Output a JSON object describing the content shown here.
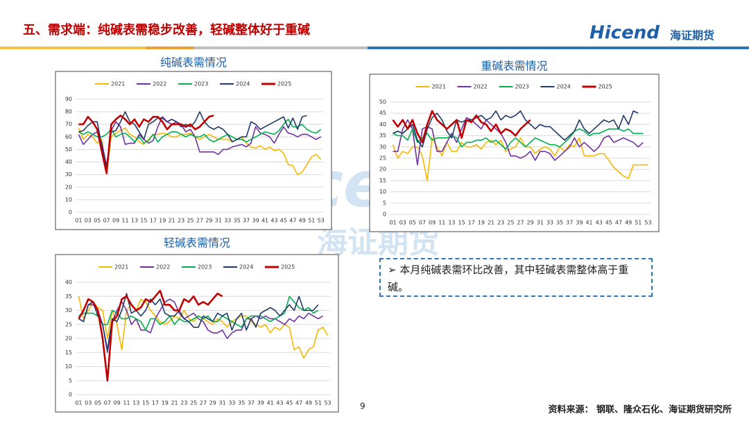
{
  "header": {
    "title": "五、需求端：纯碱表需稳步改善，轻碱整体好于重碱",
    "logo": "Hicend",
    "logo_cn": "海证期货"
  },
  "watermark": {
    "text": "Hicend",
    "text_cn": "海证期货"
  },
  "note": "本月纯碱表需环比改善，其中轻碱表需整体高于重碱。",
  "page": "9",
  "source": "资料来源：  钢联、隆众石化、海证期货研究所",
  "chart_data": [
    {
      "type": "line",
      "title": "纯碱表需情况",
      "categories": [
        "01",
        null,
        "03",
        null,
        "05",
        null,
        "07",
        null,
        "09",
        null,
        "11",
        null,
        "13",
        null,
        "15",
        null,
        "17",
        null,
        "19",
        null,
        "21",
        null,
        "23",
        null,
        "25",
        null,
        "27",
        null,
        "29",
        null,
        "31",
        null,
        "33",
        null,
        "35",
        null,
        "37",
        null,
        "39",
        null,
        "41",
        null,
        "43",
        null,
        "45",
        null,
        "47",
        null,
        "49",
        null,
        "51",
        null,
        "53"
      ],
      "ylim": [
        0,
        90
      ],
      "yticks": [
        0,
        10,
        20,
        30,
        40,
        50,
        60,
        70,
        80,
        90
      ],
      "legend": "top",
      "series": [
        {
          "name": "2021",
          "color": "#f5b800",
          "values": [
            67,
            58,
            62,
            60,
            55,
            58,
            31,
            60,
            63,
            65,
            67,
            62,
            60,
            56,
            54,
            58,
            62,
            62,
            63,
            62,
            60,
            60,
            62,
            62,
            63,
            60,
            58,
            60,
            62,
            60,
            58,
            58,
            58,
            56,
            58,
            60,
            55,
            52,
            51,
            53,
            50,
            52,
            49,
            50,
            47,
            38,
            37,
            30,
            32,
            38,
            44,
            46,
            42
          ]
        },
        {
          "name": "2022",
          "color": "#7030a0",
          "values": [
            62,
            54,
            58,
            62,
            64,
            55,
            37,
            65,
            72,
            68,
            54,
            55,
            55,
            62,
            58,
            55,
            57,
            68,
            76,
            72,
            70,
            72,
            70,
            64,
            66,
            60,
            48,
            48,
            48,
            48,
            46,
            50,
            50,
            52,
            53,
            54,
            52,
            55,
            68,
            63,
            62,
            60,
            55,
            62,
            68,
            63,
            62,
            60,
            62,
            62,
            60,
            58,
            60
          ]
        },
        {
          "name": "2023",
          "color": "#00b050",
          "values": [
            64,
            62,
            64,
            62,
            60,
            60,
            62,
            66,
            60,
            62,
            63,
            60,
            56,
            60,
            55,
            57,
            62,
            56,
            60,
            62,
            64,
            64,
            62,
            60,
            62,
            60,
            60,
            62,
            58,
            56,
            58,
            60,
            62,
            60,
            58,
            58,
            56,
            58,
            60,
            62,
            64,
            63,
            62,
            65,
            70,
            74,
            68,
            68,
            70,
            66,
            64,
            63,
            66
          ]
        },
        {
          "name": "2024",
          "color": "#1f3864",
          "values": [
            64,
            65,
            69,
            72,
            72,
            52,
            36,
            64,
            65,
            72,
            80,
            72,
            70,
            64,
            58,
            70,
            72,
            75,
            75,
            72,
            74,
            72,
            68,
            70,
            68,
            72,
            80,
            72,
            68,
            66,
            68,
            66,
            62,
            56,
            58,
            60,
            60,
            72,
            70,
            66,
            68,
            70,
            72,
            74,
            76,
            67,
            75,
            66,
            76,
            77,
            null,
            null,
            null
          ]
        },
        {
          "name": "2025",
          "color": "#c00000",
          "values": [
            70,
            70,
            76,
            72,
            66,
            48,
            31,
            70,
            74,
            77,
            74,
            70,
            74,
            68,
            74,
            72,
            76,
            76,
            72,
            66,
            70,
            70,
            70,
            68,
            70,
            66,
            68,
            72,
            76,
            77,
            null,
            null,
            null,
            null,
            null,
            null,
            null,
            null,
            null,
            null,
            null,
            null,
            null,
            null,
            null,
            null,
            null,
            null,
            null,
            null,
            null,
            null,
            null
          ]
        }
      ]
    },
    {
      "type": "line",
      "title": "重碱表需情况",
      "categories": [
        "01",
        null,
        "03",
        null,
        "05",
        null,
        "07",
        null,
        "09",
        null,
        "11",
        null,
        "13",
        null,
        "15",
        null,
        "17",
        null,
        "19",
        null,
        "21",
        null,
        "23",
        null,
        "25",
        null,
        "27",
        null,
        "29",
        null,
        "31",
        null,
        "33",
        null,
        "35",
        null,
        "37",
        null,
        "39",
        null,
        "41",
        null,
        "43",
        null,
        "45",
        null,
        "47",
        null,
        "49",
        null,
        "51",
        null,
        "53"
      ],
      "ylim": [
        0,
        50
      ],
      "yticks": [
        0,
        5,
        10,
        15,
        20,
        25,
        30,
        35,
        40,
        45,
        50
      ],
      "legend": "top",
      "series": [
        {
          "name": "2021",
          "color": "#f5b800",
          "values": [
            31,
            25,
            28,
            27,
            30,
            30,
            26,
            15,
            34,
            30,
            26,
            32,
            28,
            28,
            32,
            30,
            30,
            31,
            29,
            32,
            33,
            31,
            33,
            28,
            29,
            30,
            34,
            30,
            30,
            27,
            29,
            30,
            29,
            26,
            30,
            28,
            31,
            30,
            34,
            26,
            26,
            26,
            27,
            27,
            24,
            21,
            19,
            17,
            16,
            22,
            22,
            22,
            22
          ]
        },
        {
          "name": "2022",
          "color": "#7030a0",
          "values": [
            28,
            28,
            38,
            42,
            38,
            22,
            38,
            39,
            38,
            28,
            28,
            32,
            36,
            32,
            38,
            43,
            42,
            40,
            38,
            42,
            40,
            38,
            36,
            32,
            26,
            26,
            25,
            26,
            28,
            24,
            28,
            28,
            27,
            24,
            26,
            28,
            30,
            34,
            30,
            32,
            30,
            28,
            30,
            34,
            35,
            32,
            33,
            34,
            33,
            32,
            30,
            32,
            null
          ]
        },
        {
          "name": "2023",
          "color": "#00b050",
          "values": [
            36,
            35,
            35,
            33,
            38,
            32,
            34,
            36,
            33,
            34,
            34,
            34,
            35,
            34,
            30,
            32,
            32,
            33,
            33,
            34,
            32,
            33,
            31,
            29,
            32,
            34,
            32,
            30,
            32,
            34,
            33,
            32,
            31,
            31,
            30,
            32,
            34,
            37,
            38,
            37,
            35,
            36,
            36,
            37,
            38,
            38,
            38,
            37,
            38,
            36,
            36,
            36,
            null
          ]
        },
        {
          "name": "2024",
          "color": "#1f3864",
          "values": [
            36,
            37,
            36,
            38,
            40,
            33,
            30,
            38,
            43,
            45,
            42,
            37,
            34,
            42,
            41,
            42,
            42,
            43,
            44,
            42,
            43,
            46,
            42,
            44,
            43,
            44,
            46,
            42,
            40,
            38,
            40,
            39,
            39,
            37,
            35,
            33,
            35,
            37,
            42,
            38,
            36,
            38,
            40,
            42,
            41,
            42,
            38,
            44,
            40,
            46,
            45,
            null,
            null
          ]
        },
        {
          "name": "2025",
          "color": "#c00000",
          "values": [
            42,
            39,
            42,
            38,
            42,
            36,
            32,
            40,
            46,
            42,
            40,
            38,
            40,
            42,
            34,
            42,
            41,
            44,
            41,
            40,
            37,
            40,
            36,
            38,
            37,
            35,
            38,
            40,
            42,
            null,
            null,
            null,
            null,
            null,
            null,
            null,
            null,
            null,
            null,
            null,
            null,
            null,
            null,
            null,
            null,
            null,
            null,
            null,
            null,
            null,
            null,
            null,
            null
          ]
        }
      ]
    },
    {
      "type": "line",
      "title": "轻碱表需情况",
      "categories": [
        "01",
        null,
        "03",
        null,
        "05",
        null,
        "07",
        null,
        "09",
        null,
        "11",
        null,
        "13",
        null,
        "15",
        null,
        "17",
        null,
        "19",
        null,
        "21",
        null,
        "23",
        null,
        "25",
        null,
        "27",
        null,
        "29",
        null,
        "31",
        null,
        "33",
        null,
        "35",
        null,
        "37",
        null,
        "39",
        null,
        "41",
        null,
        "43",
        null,
        "45",
        null,
        "47",
        null,
        "49",
        null,
        "51",
        null,
        "53"
      ],
      "ylim": [
        0,
        40
      ],
      "yticks": [
        0,
        5,
        10,
        15,
        20,
        25,
        30,
        35,
        40
      ],
      "legend": "top",
      "series": [
        {
          "name": "2021",
          "color": "#f5b800",
          "values": [
            35,
            27,
            30,
            33,
            31,
            30,
            20,
            30,
            25,
            16,
            30,
            32,
            30,
            34,
            33,
            30,
            28,
            26,
            25,
            26,
            28,
            27,
            30,
            27,
            26,
            28,
            27,
            26,
            25,
            27,
            26,
            24,
            26,
            27,
            28,
            28,
            26,
            25,
            24,
            25,
            22,
            24,
            23,
            25,
            24,
            16,
            17,
            13,
            16,
            17,
            23,
            24,
            21
          ]
        },
        {
          "name": "2022",
          "color": "#7030a0",
          "values": [
            27,
            26,
            32,
            32,
            30,
            25,
            15,
            26,
            30,
            33,
            30,
            25,
            27,
            23,
            23,
            22,
            27,
            30,
            33,
            34,
            33,
            29,
            27,
            28,
            29,
            27,
            26,
            23,
            22,
            22,
            23,
            20,
            22,
            23,
            23,
            27,
            27,
            28,
            27,
            28,
            27,
            27,
            26,
            25,
            27,
            26,
            28,
            27,
            29,
            28,
            27,
            28,
            null
          ]
        },
        {
          "name": "2023",
          "color": "#00b050",
          "values": [
            28,
            29,
            29,
            29,
            28,
            25,
            25,
            30,
            29,
            27,
            27,
            28,
            27,
            26,
            23,
            27,
            27,
            25,
            26,
            28,
            25,
            27,
            26,
            26,
            27,
            28,
            27,
            28,
            26,
            26,
            28,
            27,
            26,
            25,
            24,
            27,
            28,
            28,
            28,
            27,
            26,
            27,
            28,
            29,
            35,
            33,
            31,
            30,
            31,
            29,
            30,
            null,
            null
          ]
        },
        {
          "name": "2024",
          "color": "#1f3864",
          "values": [
            27,
            26,
            32,
            33,
            28,
            25,
            16,
            27,
            26,
            30,
            36,
            29,
            30,
            28,
            30,
            34,
            32,
            34,
            29,
            28,
            28,
            30,
            27,
            26,
            24,
            24,
            28,
            27,
            26,
            29,
            28,
            29,
            23,
            27,
            29,
            23,
            27,
            24,
            29,
            30,
            31,
            30,
            28,
            30,
            32,
            30,
            35,
            30,
            30,
            30,
            32,
            null,
            null
          ]
        },
        {
          "name": "2025",
          "color": "#c00000",
          "values": [
            27,
            30,
            34,
            33,
            30,
            20,
            5,
            26,
            28,
            34,
            35,
            32,
            30,
            31,
            34,
            33,
            35,
            37,
            32,
            32,
            30,
            30,
            34,
            33,
            35,
            32,
            33,
            32,
            34,
            36,
            35,
            null,
            null,
            null,
            null,
            null,
            null,
            null,
            null,
            null,
            null,
            null,
            null,
            null,
            null,
            null,
            null,
            null,
            null,
            null,
            null,
            null,
            null
          ]
        }
      ]
    }
  ]
}
